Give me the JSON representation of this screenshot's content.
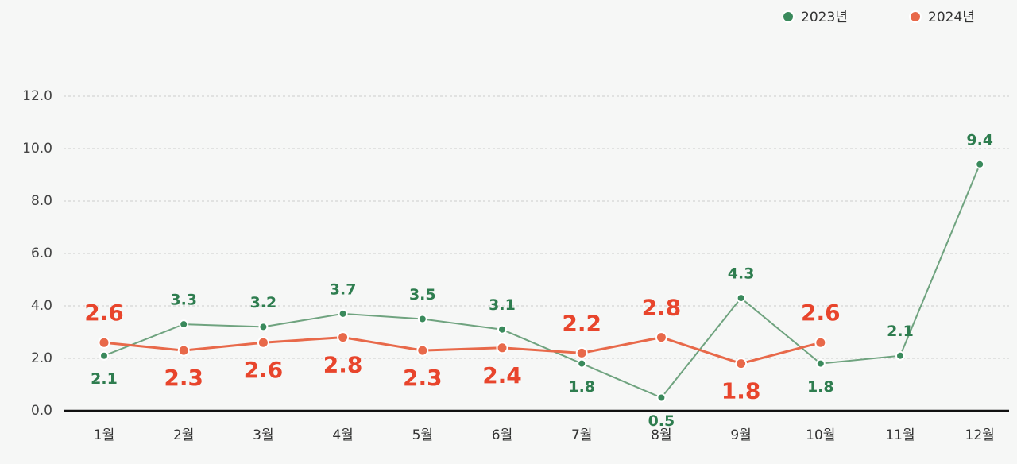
{
  "chart_data": {
    "type": "line",
    "categories": [
      "1월",
      "2월",
      "3월",
      "4월",
      "5월",
      "6월",
      "7월",
      "8월",
      "9월",
      "10월",
      "11월",
      "12월"
    ],
    "series": [
      {
        "name": "2023년",
        "color": "#3a8a5c",
        "values": [
          2.1,
          3.3,
          3.2,
          3.7,
          3.5,
          3.1,
          1.8,
          0.5,
          4.3,
          1.8,
          2.1,
          9.4
        ]
      },
      {
        "name": "2024년",
        "color": "#e8694a",
        "values": [
          2.6,
          2.3,
          2.6,
          2.8,
          2.3,
          2.4,
          2.2,
          2.8,
          1.8,
          2.6,
          null,
          null
        ]
      }
    ],
    "ylim": [
      0,
      12
    ],
    "yticks": [
      {
        "value": 0,
        "label": "0.0"
      },
      {
        "value": 2,
        "label": "2.0"
      },
      {
        "value": 4,
        "label": "4.0"
      },
      {
        "value": 6,
        "label": "6.0"
      },
      {
        "value": 8,
        "label": "8.0"
      },
      {
        "value": 10,
        "label": "10.0"
      },
      {
        "value": 12,
        "label": "12.0"
      }
    ],
    "grid": true
  }
}
